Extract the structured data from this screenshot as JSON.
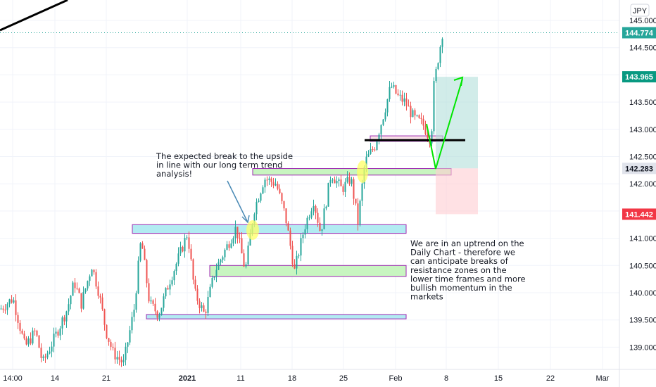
{
  "currency_label": "JPY",
  "chart_data": {
    "type": "candlestick",
    "y_axis": {
      "ticks": [
        "145.000",
        "144.500",
        "144.000",
        "143.500",
        "143.000",
        "142.500",
        "142.000",
        "141.500",
        "141.000",
        "140.500",
        "140.000",
        "139.500",
        "139.000"
      ],
      "range": [
        138.6,
        145.15
      ]
    },
    "x_axis": {
      "ticks": [
        {
          "label": "14:00",
          "bold": false
        },
        {
          "label": "14",
          "bold": false
        },
        {
          "label": "21",
          "bold": false
        },
        {
          "label": "2021",
          "bold": true
        },
        {
          "label": "11",
          "bold": false
        },
        {
          "label": "18",
          "bold": false
        },
        {
          "label": "25",
          "bold": false
        },
        {
          "label": "Feb",
          "bold": false
        },
        {
          "label": "8",
          "bold": false
        },
        {
          "label": "15",
          "bold": false
        },
        {
          "label": "22",
          "bold": false
        },
        {
          "label": "Mar",
          "bold": false
        }
      ]
    },
    "price_tags": [
      {
        "value": "144.774",
        "price": 144.774,
        "color": "#26a69a"
      },
      {
        "value": "143.965",
        "price": 143.965,
        "color": "#089981"
      },
      {
        "value": "142.283",
        "price": 142.283,
        "color": "#e0e3eb"
      },
      {
        "value": "141.442",
        "price": 141.442,
        "color": "#f23645"
      }
    ],
    "current_price": 144.774,
    "zones": [
      {
        "name": "resistance-zone-upper",
        "price_top": 141.25,
        "price_bottom": 141.09,
        "color": "#b2ebf2",
        "border": "#9c27b0"
      },
      {
        "name": "support-zone-green-low",
        "price_top": 140.5,
        "price_bottom": 140.3,
        "color": "#c8f5c0",
        "border": "#9c27b0"
      },
      {
        "name": "support-zone-bottom",
        "price_top": 139.6,
        "price_bottom": 139.52,
        "color": "#b2ebf2",
        "border": "#9c27b0"
      },
      {
        "name": "support-zone-green-high",
        "price_top": 142.28,
        "price_bottom": 142.16,
        "color": "#c8f5c0",
        "border": "#9c27b0"
      },
      {
        "name": "resistance-zone-small",
        "price_top": 142.88,
        "price_bottom": 142.78,
        "color": "#f8e0e6",
        "border": "#9c27b0"
      }
    ],
    "key_level": 142.8,
    "trade": {
      "entry": 142.283,
      "target": 143.965,
      "stop": 141.442
    },
    "annotations": [
      {
        "name": "annotation-breakout",
        "lines": [
          "The expected break to the upside",
          "in line with our long term trend",
          "analysis!"
        ]
      },
      {
        "name": "annotation-uptrend",
        "lines": [
          "We are in an uptrend on the",
          "Daily Chart - therefore we",
          "can anticipate breaks of",
          "resistance zones on the",
          "lower time frames and more",
          "bullish momentum in the",
          "markets"
        ]
      }
    ],
    "colors": {
      "up": "#26a69a",
      "down": "#ef5350",
      "grid": "#f0f3fa"
    }
  }
}
